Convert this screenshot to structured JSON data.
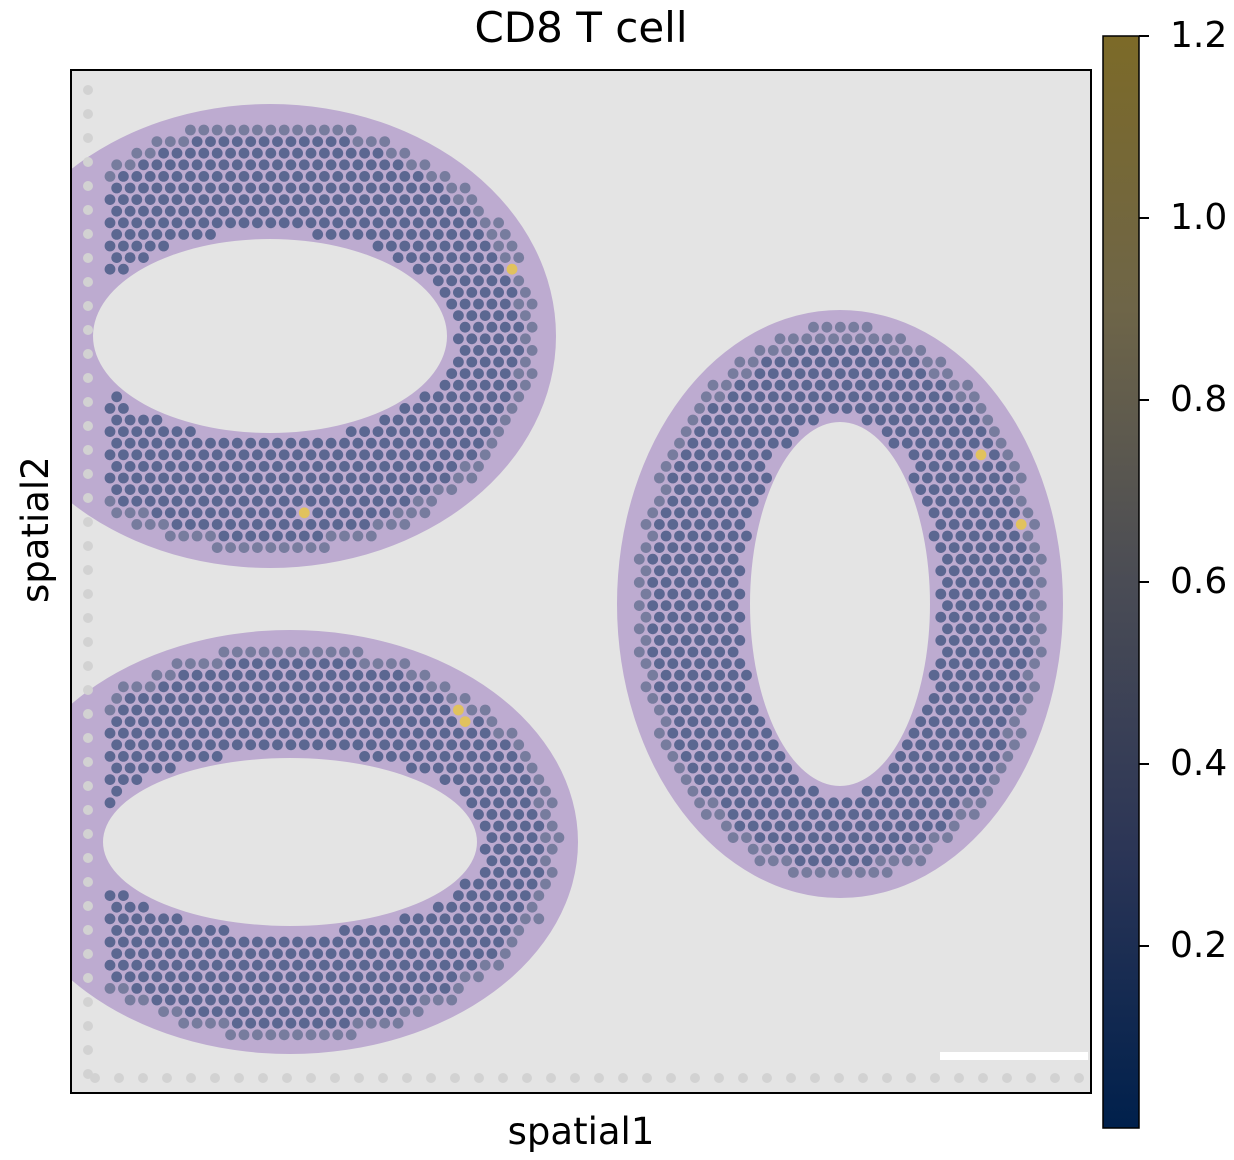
{
  "chart_data": {
    "type": "scatter",
    "title": "CD8 T cell",
    "xlabel": "spatial1",
    "ylabel": "spatial2",
    "colorbar": {
      "cmap": "cividis",
      "range": [
        0.0,
        1.2
      ],
      "ticks": [
        "0.2",
        "0.4",
        "0.6",
        "0.8",
        "1.0",
        "1.2"
      ],
      "tick_values": [
        0.2,
        0.4,
        0.6,
        0.8,
        1.0,
        1.2
      ]
    },
    "spot_colors": {
      "low": "#4a5a86",
      "mid": "#6b7395",
      "high": "#e8c64a"
    },
    "background_color": "#e4e4e4",
    "tissue_color": "#9c7bbf",
    "typical_spot_value": 0.4,
    "max_spot_value": 1.2,
    "tissue_sections": 3
  }
}
